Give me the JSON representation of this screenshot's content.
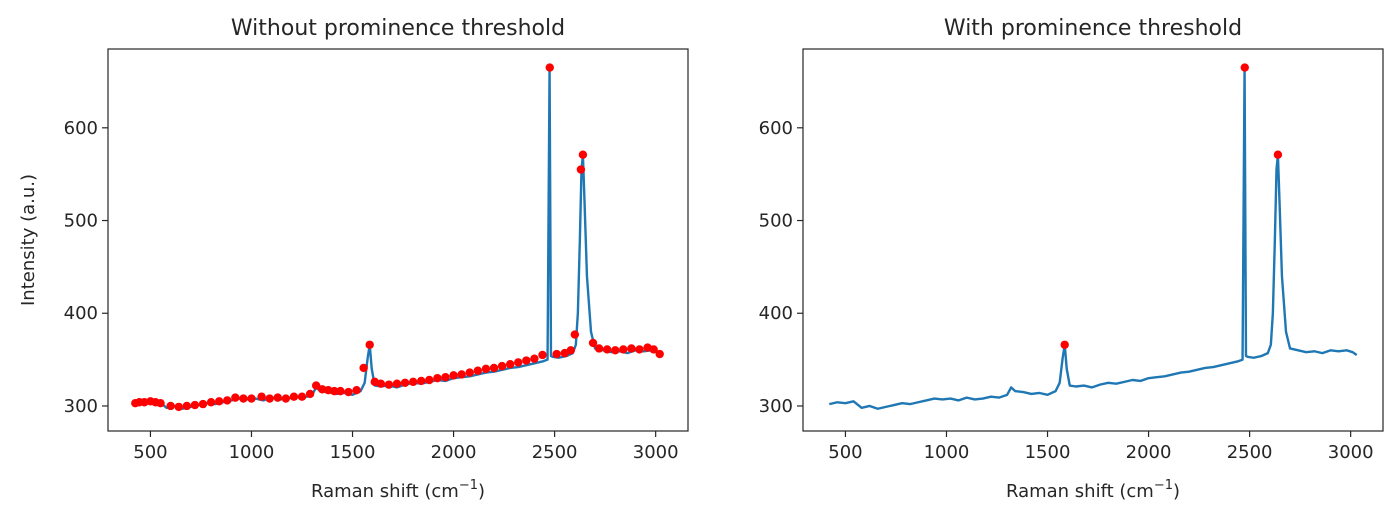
{
  "chart_data": [
    {
      "type": "line",
      "title": "Without prominence threshold",
      "xlabel": "Raman shift (cm",
      "xlabel_sup": "−1",
      "xlabel_end": ")",
      "ylabel": "Intensity (a.u.)",
      "xlim": [
        290,
        3160
      ],
      "ylim": [
        273,
        685
      ],
      "xticks": [
        500,
        1000,
        1500,
        2000,
        2500,
        3000
      ],
      "xtick_labels": [
        "500",
        "1000",
        "1500",
        "2000",
        "2500",
        "3000"
      ],
      "yticks": [
        300,
        400,
        500,
        600
      ],
      "ytick_labels": [
        "300",
        "400",
        "500",
        "600"
      ],
      "line_color": "#1f77b4",
      "marker_color": "#ff0000",
      "series": [
        {
          "x": [
            420,
            460,
            500,
            540,
            580,
            620,
            660,
            700,
            740,
            780,
            820,
            860,
            900,
            940,
            980,
            1020,
            1060,
            1100,
            1140,
            1180,
            1220,
            1260,
            1300,
            1320,
            1340,
            1380,
            1420,
            1460,
            1500,
            1540,
            1560,
            1575,
            1585,
            1595,
            1610,
            1640,
            1680,
            1720,
            1760,
            1800,
            1840,
            1880,
            1920,
            1960,
            2000,
            2040,
            2080,
            2120,
            2160,
            2200,
            2240,
            2280,
            2320,
            2360,
            2400,
            2440,
            2465,
            2475,
            2482,
            2490,
            2520,
            2560,
            2590,
            2605,
            2615,
            2625,
            2633,
            2640,
            2648,
            2660,
            2680,
            2700,
            2740,
            2780,
            2820,
            2860,
            2900,
            2940,
            2980,
            3010,
            3030
          ],
          "y": [
            302,
            304,
            303,
            305,
            298,
            300,
            297,
            299,
            301,
            303,
            302,
            304,
            306,
            308,
            307,
            308,
            306,
            309,
            307,
            308,
            310,
            309,
            312,
            320,
            316,
            315,
            313,
            314,
            312,
            316,
            325,
            352,
            366,
            340,
            322,
            321,
            322,
            320,
            323,
            325,
            324,
            326,
            328,
            327,
            330,
            331,
            332,
            334,
            336,
            337,
            339,
            341,
            342,
            344,
            346,
            348,
            350,
            665,
            354,
            353,
            352,
            354,
            357,
            366,
            400,
            480,
            555,
            571,
            520,
            440,
            380,
            362,
            360,
            358,
            359,
            357,
            360,
            359,
            360,
            358,
            355
          ]
        }
      ],
      "peaks": [
        {
          "x": 425,
          "y": 303
        },
        {
          "x": 445,
          "y": 304
        },
        {
          "x": 470,
          "y": 304
        },
        {
          "x": 500,
          "y": 305
        },
        {
          "x": 525,
          "y": 304
        },
        {
          "x": 550,
          "y": 303
        },
        {
          "x": 600,
          "y": 300
        },
        {
          "x": 640,
          "y": 299
        },
        {
          "x": 680,
          "y": 300
        },
        {
          "x": 720,
          "y": 301
        },
        {
          "x": 760,
          "y": 302
        },
        {
          "x": 800,
          "y": 304
        },
        {
          "x": 840,
          "y": 305
        },
        {
          "x": 880,
          "y": 306
        },
        {
          "x": 920,
          "y": 309
        },
        {
          "x": 960,
          "y": 308
        },
        {
          "x": 1000,
          "y": 308
        },
        {
          "x": 1050,
          "y": 310
        },
        {
          "x": 1090,
          "y": 308
        },
        {
          "x": 1130,
          "y": 309
        },
        {
          "x": 1170,
          "y": 308
        },
        {
          "x": 1210,
          "y": 310
        },
        {
          "x": 1250,
          "y": 310
        },
        {
          "x": 1290,
          "y": 313
        },
        {
          "x": 1320,
          "y": 322
        },
        {
          "x": 1350,
          "y": 318
        },
        {
          "x": 1380,
          "y": 317
        },
        {
          "x": 1410,
          "y": 316
        },
        {
          "x": 1440,
          "y": 316
        },
        {
          "x": 1480,
          "y": 315
        },
        {
          "x": 1520,
          "y": 317
        },
        {
          "x": 1555,
          "y": 341
        },
        {
          "x": 1585,
          "y": 366
        },
        {
          "x": 1610,
          "y": 326
        },
        {
          "x": 1640,
          "y": 324
        },
        {
          "x": 1680,
          "y": 323
        },
        {
          "x": 1720,
          "y": 324
        },
        {
          "x": 1760,
          "y": 325
        },
        {
          "x": 1800,
          "y": 326
        },
        {
          "x": 1840,
          "y": 327
        },
        {
          "x": 1880,
          "y": 328
        },
        {
          "x": 1920,
          "y": 330
        },
        {
          "x": 1960,
          "y": 331
        },
        {
          "x": 2000,
          "y": 333
        },
        {
          "x": 2040,
          "y": 334
        },
        {
          "x": 2080,
          "y": 336
        },
        {
          "x": 2120,
          "y": 338
        },
        {
          "x": 2160,
          "y": 340
        },
        {
          "x": 2200,
          "y": 341
        },
        {
          "x": 2240,
          "y": 343
        },
        {
          "x": 2280,
          "y": 345
        },
        {
          "x": 2320,
          "y": 347
        },
        {
          "x": 2360,
          "y": 349
        },
        {
          "x": 2400,
          "y": 351
        },
        {
          "x": 2440,
          "y": 355
        },
        {
          "x": 2476,
          "y": 665
        },
        {
          "x": 2510,
          "y": 356
        },
        {
          "x": 2550,
          "y": 357
        },
        {
          "x": 2580,
          "y": 360
        },
        {
          "x": 2600,
          "y": 377
        },
        {
          "x": 2630,
          "y": 555
        },
        {
          "x": 2640,
          "y": 571
        },
        {
          "x": 2690,
          "y": 368
        },
        {
          "x": 2720,
          "y": 362
        },
        {
          "x": 2760,
          "y": 361
        },
        {
          "x": 2800,
          "y": 360
        },
        {
          "x": 2840,
          "y": 361
        },
        {
          "x": 2880,
          "y": 362
        },
        {
          "x": 2920,
          "y": 361
        },
        {
          "x": 2960,
          "y": 363
        },
        {
          "x": 2990,
          "y": 361
        },
        {
          "x": 3020,
          "y": 356
        }
      ]
    },
    {
      "type": "line",
      "title": "With prominence threshold",
      "xlabel": "Raman shift (cm",
      "xlabel_sup": "−1",
      "xlabel_end": ")",
      "ylabel": "",
      "xlim": [
        290,
        3160
      ],
      "ylim": [
        273,
        685
      ],
      "xticks": [
        500,
        1000,
        1500,
        2000,
        2500,
        3000
      ],
      "xtick_labels": [
        "500",
        "1000",
        "1500",
        "2000",
        "2500",
        "3000"
      ],
      "yticks": [
        300,
        400,
        500,
        600
      ],
      "ytick_labels": [
        "300",
        "400",
        "500",
        "600"
      ],
      "line_color": "#1f77b4",
      "marker_color": "#ff0000",
      "series": [
        {
          "x": [
            420,
            460,
            500,
            540,
            580,
            620,
            660,
            700,
            740,
            780,
            820,
            860,
            900,
            940,
            980,
            1020,
            1060,
            1100,
            1140,
            1180,
            1220,
            1260,
            1300,
            1320,
            1340,
            1380,
            1420,
            1460,
            1500,
            1540,
            1560,
            1575,
            1585,
            1595,
            1610,
            1640,
            1680,
            1720,
            1760,
            1800,
            1840,
            1880,
            1920,
            1960,
            2000,
            2040,
            2080,
            2120,
            2160,
            2200,
            2240,
            2280,
            2320,
            2360,
            2400,
            2440,
            2465,
            2475,
            2482,
            2490,
            2520,
            2560,
            2590,
            2605,
            2615,
            2625,
            2633,
            2640,
            2648,
            2660,
            2680,
            2700,
            2740,
            2780,
            2820,
            2860,
            2900,
            2940,
            2980,
            3010,
            3030
          ],
          "y": [
            302,
            304,
            303,
            305,
            298,
            300,
            297,
            299,
            301,
            303,
            302,
            304,
            306,
            308,
            307,
            308,
            306,
            309,
            307,
            308,
            310,
            309,
            312,
            320,
            316,
            315,
            313,
            314,
            312,
            316,
            325,
            352,
            366,
            340,
            322,
            321,
            322,
            320,
            323,
            325,
            324,
            326,
            328,
            327,
            330,
            331,
            332,
            334,
            336,
            337,
            339,
            341,
            342,
            344,
            346,
            348,
            350,
            665,
            354,
            353,
            352,
            354,
            357,
            366,
            400,
            480,
            555,
            571,
            520,
            440,
            380,
            362,
            360,
            358,
            359,
            357,
            360,
            359,
            360,
            358,
            355
          ]
        }
      ],
      "peaks": [
        {
          "x": 1585,
          "y": 366
        },
        {
          "x": 2476,
          "y": 665
        },
        {
          "x": 2640,
          "y": 571
        }
      ]
    }
  ]
}
